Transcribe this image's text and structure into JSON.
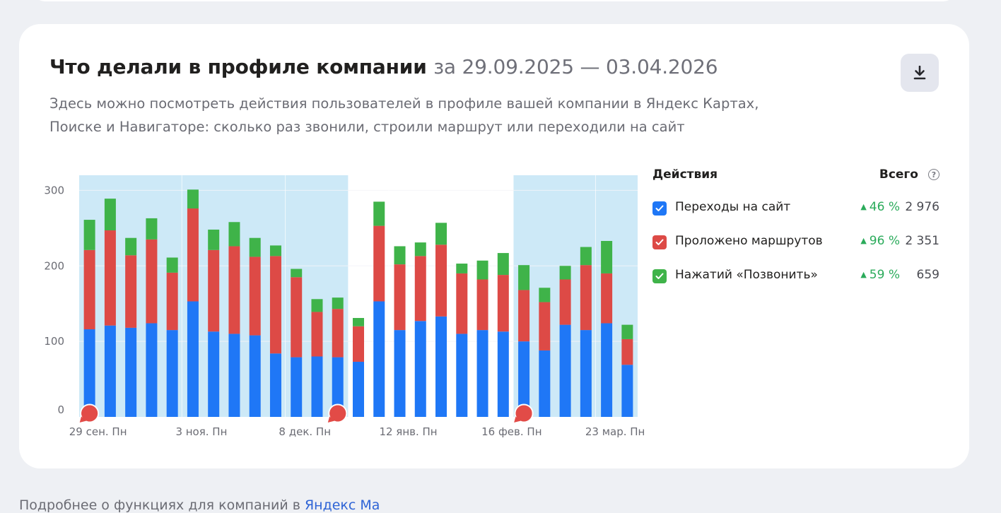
{
  "header": {
    "title": "Что делали в профиле компании",
    "period": "за 29.09.2025 — 03.04.2026",
    "description": "Здесь можно посмотреть действия пользователей в профиле вашей компании в Яндекс Картах, Поиске и Навигаторе: сколько раз звонили, строили маршрут или переходили на сайт",
    "download_icon": "download-icon"
  },
  "legend": {
    "header_left": "Действия",
    "header_right": "Всего",
    "help_icon": "question-circle-icon",
    "help_glyph": "?",
    "items": [
      {
        "label": "Переходы на сайт",
        "trend": "46 %",
        "total": "2 976",
        "color": "#1f77f6"
      },
      {
        "label": "Проложено маршрутов",
        "trend": "96 %",
        "total": "2 351",
        "color": "#dd4a46"
      },
      {
        "label": "Нажатий «Позвонить»",
        "trend": "59 %",
        "total": "659",
        "color": "#3fb349"
      }
    ]
  },
  "footer": {
    "text": "Подробнее о функциях для компаний в ",
    "link": "Яндекс Ма"
  },
  "chart_data": {
    "type": "bar",
    "stacked": true,
    "ylim": [
      0,
      320
    ],
    "yticks": [
      0,
      100,
      200,
      300
    ],
    "grid": true,
    "x_tick_labels": [
      "29 сен. Пн",
      "3 ноя. Пн",
      "8 дек. Пн",
      "12 янв. Пн",
      "16 фев. Пн",
      "23 мар. Пн"
    ],
    "x_tick_bar_index": [
      0,
      5,
      10,
      15,
      20,
      25
    ],
    "highlighted_bar_ranges": [
      [
        0,
        12
      ],
      [
        21,
        26
      ]
    ],
    "marker_bar_index": [
      0,
      12,
      21
    ],
    "series": [
      {
        "name": "Переходы на сайт",
        "color": "#1f77f6",
        "values": [
          116,
          121,
          118,
          124,
          115,
          153,
          113,
          110,
          108,
          84,
          79,
          80,
          79,
          73,
          153,
          115,
          127,
          133,
          110,
          115,
          113,
          100,
          88,
          122,
          115,
          124,
          69
        ]
      },
      {
        "name": "Проложено маршрутов",
        "color": "#dd4a46",
        "values": [
          105,
          126,
          96,
          111,
          76,
          123,
          108,
          116,
          104,
          129,
          106,
          59,
          64,
          47,
          100,
          87,
          86,
          95,
          80,
          67,
          75,
          68,
          64,
          60,
          86,
          66,
          34
        ]
      },
      {
        "name": "Нажатий «Позвонить»",
        "color": "#3fb349",
        "values": [
          40,
          42,
          23,
          28,
          20,
          25,
          27,
          32,
          25,
          14,
          11,
          17,
          15,
          11,
          32,
          24,
          18,
          29,
          13,
          25,
          29,
          33,
          19,
          18,
          24,
          43,
          19
        ]
      }
    ]
  }
}
